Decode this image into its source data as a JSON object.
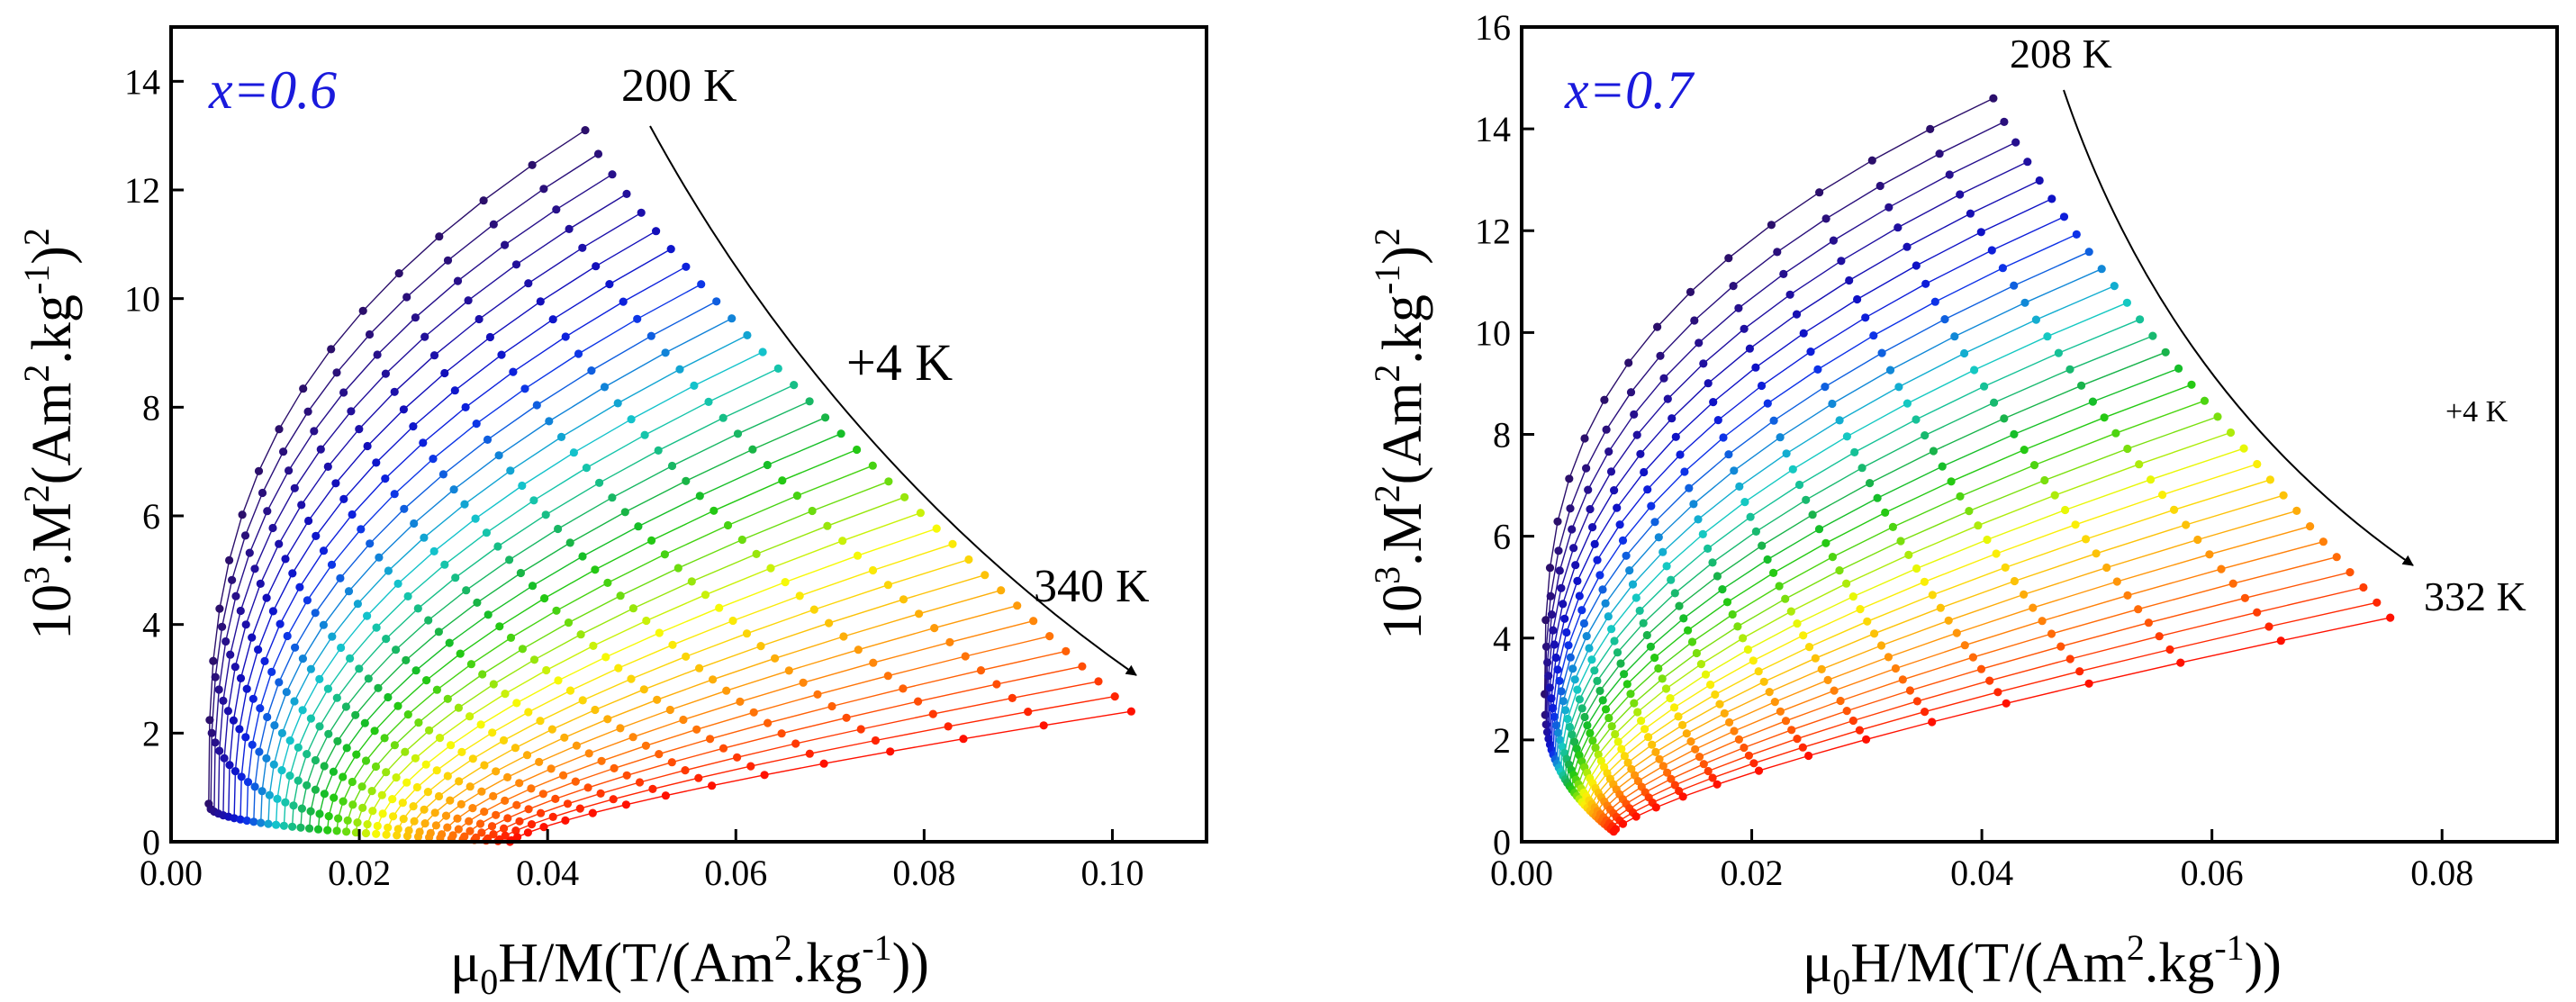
{
  "chart_data": [
    {
      "type": "line",
      "subtype": "arrott-plot-isotherms",
      "panel_label": "x=0.6",
      "xlabel": {
        "main": "μ",
        "sub": "0",
        "pre": "H/M(T/(Am",
        "sup": "2",
        "post": ".kg",
        "sup2": "-1",
        "end": "))"
      },
      "ylabel": {
        "pre": "10",
        "sup1": "3",
        "mid": ".M",
        "sup2": "2",
        "mid2": "(Am",
        "sup3": "2",
        "mid3": ".kg",
        "sup4": "-1",
        "mid4": ")",
        "sup5": "2"
      },
      "xlim": [
        0.0,
        0.11
      ],
      "ylim": [
        0,
        15
      ],
      "x_ticks": [
        "0.00",
        "0.02",
        "0.04",
        "0.06",
        "0.08",
        "0.10"
      ],
      "x_tick_values": [
        0.0,
        0.02,
        0.04,
        0.06,
        0.08,
        0.1
      ],
      "y_ticks": [
        "0",
        "2",
        "4",
        "6",
        "8",
        "10",
        "12",
        "14"
      ],
      "y_tick_values": [
        0,
        2,
        4,
        6,
        8,
        10,
        12,
        14
      ],
      "temperature_start_K": 200,
      "temperature_step_K": 4,
      "n_isotherms": 36,
      "start_label": "200 K",
      "end_label": "340 K",
      "step_label": "+4 K",
      "isotherm_endpoints": {
        "first": {
          "temperature_K": 200,
          "x_end": 0.044,
          "y_end": 13.1,
          "x_start": 0.004,
          "y_start": 0.7
        },
        "last": {
          "temperature_K": 340,
          "x_end": 0.102,
          "y_end": 2.4,
          "x_start": 0.036,
          "y_start": 0.0
        }
      },
      "colors": {
        "cold": "#2a0a6e",
        "hot": "#ff1a0a",
        "label": "#1a1adc"
      }
    },
    {
      "type": "line",
      "subtype": "arrott-plot-isotherms",
      "panel_label": "x=0.7",
      "xlabel": {
        "main": "μ",
        "sub": "0",
        "pre": "H/M(T/(Am",
        "sup": "2",
        "post": ".kg",
        "sup2": "-1",
        "end": "))"
      },
      "ylabel": {
        "pre": "10",
        "sup1": "3",
        "mid": ".M",
        "sup2": "2",
        "mid2": "(Am",
        "sup3": "2",
        "mid3": ".kg",
        "sup4": "-1",
        "mid4": ")",
        "sup5": "2"
      },
      "xlim": [
        0.0,
        0.09
      ],
      "ylim": [
        0,
        16
      ],
      "x_ticks": [
        "0.00",
        "0.02",
        "0.04",
        "0.06",
        "0.08"
      ],
      "x_tick_values": [
        0.0,
        0.02,
        0.04,
        0.06,
        0.08
      ],
      "y_ticks": [
        "0",
        "2",
        "4",
        "6",
        "8",
        "10",
        "12",
        "14",
        "16"
      ],
      "y_tick_values": [
        0,
        2,
        4,
        6,
        8,
        10,
        12,
        14,
        16
      ],
      "temperature_start_K": 208,
      "temperature_step_K": 4,
      "n_isotherms": 32,
      "start_label": "208 K",
      "end_label": "332 K",
      "step_label": "+4 K",
      "isotherm_endpoints": {
        "first": {
          "temperature_K": 208,
          "x_end": 0.041,
          "y_end": 14.6,
          "x_start": 0.002,
          "y_start": 2.9
        },
        "last": {
          "temperature_K": 332,
          "x_end": 0.0755,
          "y_end": 4.4,
          "x_start": 0.008,
          "y_start": 0.2
        }
      },
      "colors": {
        "cold": "#2a0a6e",
        "hot": "#ff1a0a",
        "label": "#1a1adc"
      }
    }
  ]
}
